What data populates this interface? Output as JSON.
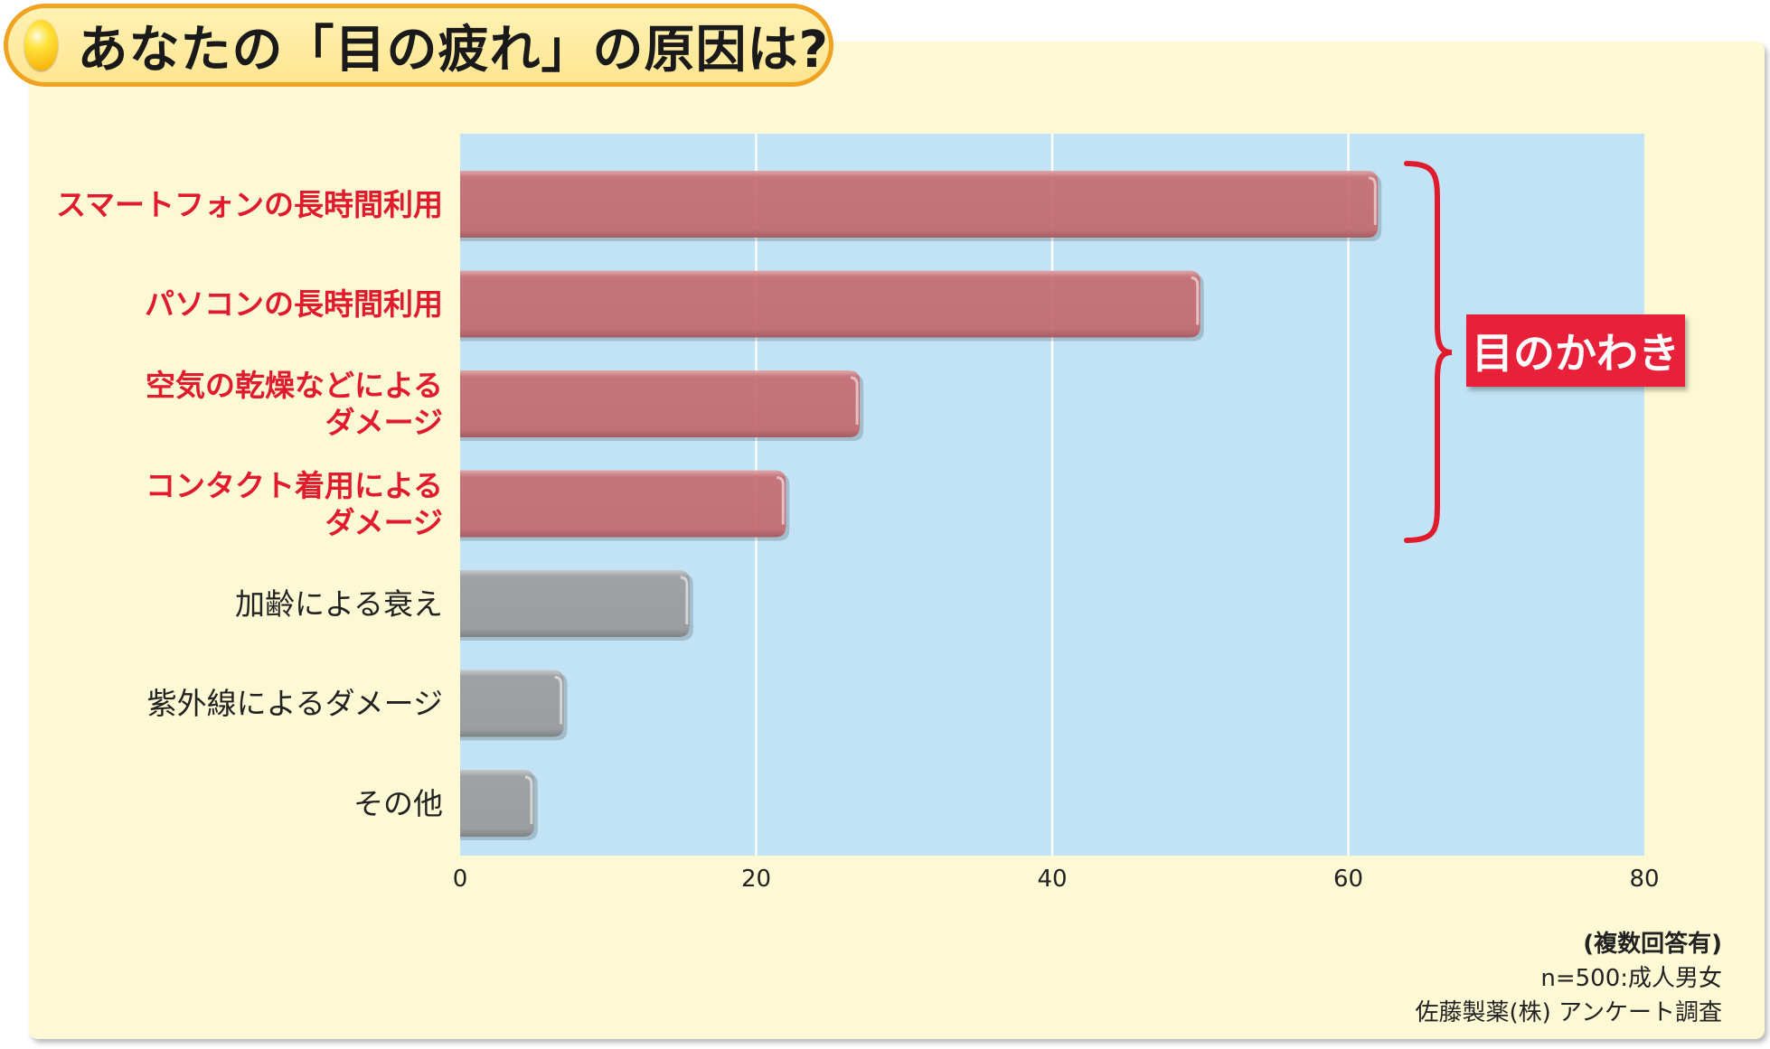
{
  "title": "あなたの「目の疲れ」の原因は?",
  "callout": "目のかわき",
  "notes": [
    "(複数回答有)",
    "n=500:成人男女",
    "佐藤製薬(株) アンケート調査"
  ],
  "colors": {
    "panel_bg": "#fdf9d4",
    "plot_bg": "#c2e3f5",
    "highlight_bar": "#c87074",
    "other_bar": "#9ea1a3",
    "highlight_text": "#e01b2e",
    "callout_bg": "#e8203a",
    "title_border": "#f0a323"
  },
  "chart_data": {
    "type": "bar",
    "orientation": "horizontal",
    "categories": [
      "スマートフォンの長時間利用",
      "パソコンの長時間利用",
      "空気の乾燥などによるダメージ",
      "コンタクト着用によるダメージ",
      "加齢による衰え",
      "紫外線によるダメージ",
      "その他"
    ],
    "category_lines": [
      [
        "スマートフォンの長時間利用"
      ],
      [
        "パソコンの長時間利用"
      ],
      [
        "空気の乾燥などによる",
        "ダメージ"
      ],
      [
        "コンタクト着用による",
        "ダメージ"
      ],
      [
        "加齢による衰え"
      ],
      [
        "紫外線によるダメージ"
      ],
      [
        "その他"
      ]
    ],
    "values": [
      62,
      50,
      27,
      22,
      15.5,
      7,
      5
    ],
    "highlighted": [
      true,
      true,
      true,
      true,
      false,
      false,
      false
    ],
    "highlight_group_label": "目のかわき",
    "xlim": [
      0,
      80
    ],
    "xticks": [
      0,
      20,
      40,
      60,
      80
    ],
    "grid": true,
    "title": "あなたの「目の疲れ」の原因は?",
    "xlabel": "",
    "ylabel": ""
  }
}
